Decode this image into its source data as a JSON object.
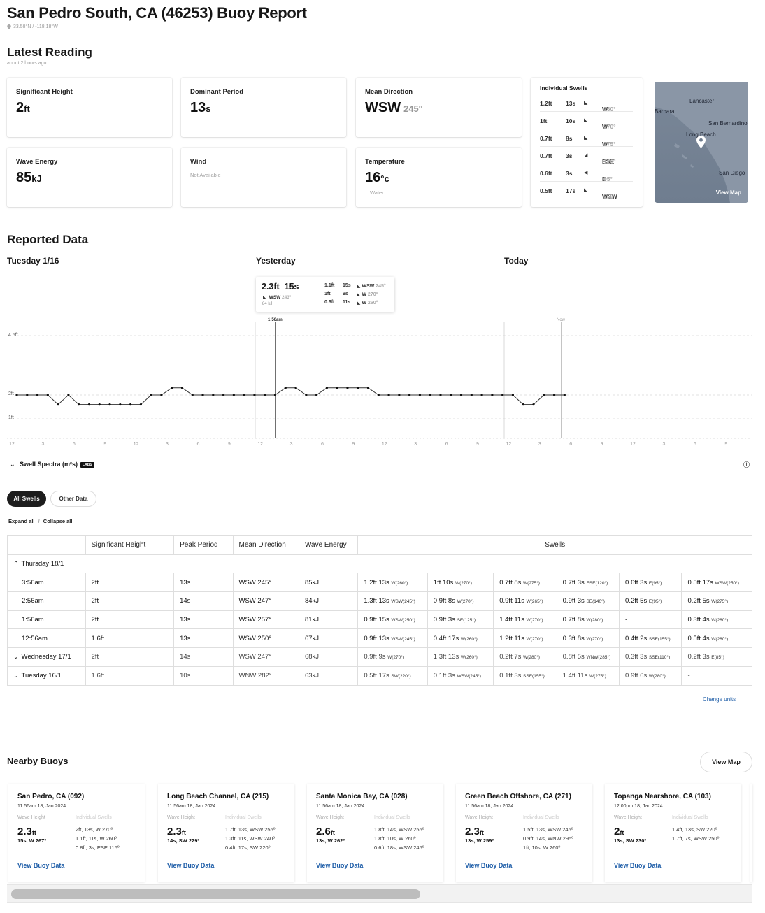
{
  "header": {
    "title": "San Pedro South, CA (46253) Buoy Report",
    "coords": "33.58°N / -118.18°W"
  },
  "latest": {
    "heading": "Latest Reading",
    "ago": "about 2 hours ago",
    "sig_height": {
      "label": "Significant Height",
      "value": "2",
      "unit": "ft"
    },
    "dom_period": {
      "label": "Dominant Period",
      "value": "13",
      "unit": "s"
    },
    "mean_dir": {
      "label": "Mean Direction",
      "value": "WSW",
      "deg": "245°"
    },
    "energy": {
      "label": "Wave Energy",
      "value": "85",
      "unit": "kJ"
    },
    "wind": {
      "label": "Wind",
      "value": "Not Available"
    },
    "temp": {
      "label": "Temperature",
      "value": "16",
      "unit": "°c",
      "note": "Water"
    },
    "swells_title": "Individual Swells",
    "swells": [
      {
        "h": "1.2ft",
        "p": "13s",
        "dir": "W",
        "deg": "260°"
      },
      {
        "h": "1ft",
        "p": "10s",
        "dir": "W",
        "deg": "270°"
      },
      {
        "h": "0.7ft",
        "p": "8s",
        "dir": "W",
        "deg": "275°"
      },
      {
        "h": "0.7ft",
        "p": "3s",
        "dir": "ESE",
        "deg": "120°"
      },
      {
        "h": "0.6ft",
        "p": "3s",
        "dir": "E",
        "deg": "95°"
      },
      {
        "h": "0.5ft",
        "p": "17s",
        "dir": "WSW",
        "deg": "250°"
      }
    ],
    "map": {
      "labels": [
        "Lancaster",
        "Barbara",
        "San Bernardino",
        "Long Beach",
        "San Diego"
      ],
      "view": "View Map"
    }
  },
  "reported": {
    "heading": "Reported Data",
    "days": [
      "Tuesday 1/16",
      "Yesterday",
      "Today"
    ],
    "tooltip": {
      "height": "2.3ft",
      "period": "15s",
      "dir": "WSW",
      "deg": "243°",
      "energy": "84 kJ",
      "rows": [
        {
          "h": "1.1ft",
          "p": "15s",
          "dir": "WSW",
          "deg": "245°"
        },
        {
          "h": "1ft",
          "p": "9s",
          "dir": "W",
          "deg": "270°"
        },
        {
          "h": "0.6ft",
          "p": "11s",
          "dir": "W",
          "deg": "260°"
        }
      ]
    },
    "cursor_label": "1:56am",
    "now_label": "Now",
    "spectra_label": "Swell Spectra (m²s)",
    "labs": "LABS"
  },
  "chart_data": {
    "type": "line",
    "ylabels": [
      "4.5ft",
      "2ft",
      "1ft"
    ],
    "xticks": [
      "12",
      "3",
      "6",
      "9",
      "12",
      "3",
      "6",
      "9",
      "12",
      "3",
      "6",
      "9",
      "12",
      "3",
      "6",
      "9",
      "12",
      "3",
      "6",
      "9",
      "12",
      "3",
      "6",
      "9"
    ],
    "series": [
      {
        "values": [
          2,
          2,
          2,
          2,
          1.6,
          2,
          1.6,
          1.6,
          1.6,
          1.6,
          1.6,
          1.6,
          1.6,
          2,
          2,
          2.3,
          2.3,
          2,
          2,
          2,
          2,
          2,
          2,
          2,
          2,
          2,
          2.3,
          2.3,
          2,
          2,
          2.3,
          2.3,
          2.3,
          2.3,
          2.3,
          2,
          2,
          2,
          2,
          2,
          2,
          2,
          2,
          2,
          2,
          2,
          2,
          2,
          2,
          1.6,
          1.6,
          2,
          2,
          2
        ]
      }
    ]
  },
  "tabs": {
    "all": "All Swells",
    "other": "Other Data"
  },
  "expand": {
    "expand": "Expand all",
    "sep": "/",
    "collapse": "Collapse all"
  },
  "table": {
    "headers": [
      "Significant Height",
      "Peak Period",
      "Mean Direction",
      "Wave Energy",
      "Swells"
    ],
    "group_thursday": "Thursday 18/1",
    "rows": [
      {
        "time": "3:56am",
        "h": "2ft",
        "p": "13s",
        "dir": "WSW 245°",
        "e": "85kJ",
        "sw": [
          [
            "1.2ft 13s",
            "W(260°)"
          ],
          [
            "1ft 10s",
            "W(270°)"
          ],
          [
            "0.7ft 8s",
            "W(275°)"
          ],
          [
            "0.7ft 3s",
            "ESE(120°)"
          ],
          [
            "0.6ft 3s",
            "E(95°)"
          ],
          [
            "0.5ft 17s",
            "WSW(250°)"
          ]
        ]
      },
      {
        "time": "2:56am",
        "h": "2ft",
        "p": "14s",
        "dir": "WSW 247°",
        "e": "84kJ",
        "sw": [
          [
            "1.3ft 13s",
            "WSW(245°)"
          ],
          [
            "0.9ft 8s",
            "W(270°)"
          ],
          [
            "0.9ft 11s",
            "W(265°)"
          ],
          [
            "0.9ft 3s",
            "SE(140°)"
          ],
          [
            "0.2ft 5s",
            "E(95°)"
          ],
          [
            "0.2ft 5s",
            "W(275°)"
          ]
        ]
      },
      {
        "time": "1:56am",
        "h": "2ft",
        "p": "13s",
        "dir": "WSW 257°",
        "e": "81kJ",
        "sw": [
          [
            "0.9ft 15s",
            "WSW(250°)"
          ],
          [
            "0.9ft 3s",
            "SE(125°)"
          ],
          [
            "1.4ft 11s",
            "W(270°)"
          ],
          [
            "0.7ft 8s",
            "W(280°)"
          ],
          [
            "-",
            ""
          ],
          [
            "0.3ft 4s",
            "W(280°)"
          ]
        ]
      },
      {
        "time": "12:56am",
        "h": "1.6ft",
        "p": "13s",
        "dir": "WSW 250°",
        "e": "67kJ",
        "sw": [
          [
            "0.9ft 13s",
            "WSW(245°)"
          ],
          [
            "0.4ft 17s",
            "W(260°)"
          ],
          [
            "1.2ft 11s",
            "W(270°)"
          ],
          [
            "0.3ft 8s",
            "W(270°)"
          ],
          [
            "0.4ft 2s",
            "SSE(155°)"
          ],
          [
            "0.5ft 4s",
            "W(280°)"
          ]
        ]
      }
    ],
    "collapsed": [
      {
        "day": "Wednesday 17/1",
        "h": "2ft",
        "p": "14s",
        "dir": "WSW 247°",
        "e": "68kJ",
        "sw": [
          [
            "0.9ft 9s",
            "W(270°)"
          ],
          [
            "1.3ft 13s",
            "W(260°)"
          ],
          [
            "0.2ft 7s",
            "W(280°)"
          ],
          [
            "0.8ft 5s",
            "WNW(285°)"
          ],
          [
            "0.3ft 3s",
            "SSE(110°)"
          ],
          [
            "0.2ft 3s",
            "E(85°)"
          ]
        ]
      },
      {
        "day": "Tuesday 16/1",
        "h": "1.6ft",
        "p": "10s",
        "dir": "WNW 282°",
        "e": "63kJ",
        "sw": [
          [
            "0.5ft 17s",
            "SW(220°)"
          ],
          [
            "0.1ft 3s",
            "WSW(245°)"
          ],
          [
            "0.1ft 3s",
            "SSE(155°)"
          ],
          [
            "1.4ft 11s",
            "W(275°)"
          ],
          [
            "0.9ft 6s",
            "W(280°)"
          ],
          [
            "-",
            ""
          ]
        ]
      }
    ],
    "change_units": "Change units"
  },
  "nearby": {
    "heading": "Nearby Buoys",
    "view_map": "View Map",
    "wave_height_label": "Wave Height",
    "ind_swells_label": "Individual Swells",
    "view_data": "View Buoy Data",
    "cards": [
      {
        "name": "San Pedro, CA (092)",
        "date": "11:56am 18, Jan 2024",
        "h": "2.3",
        "unit": "ft",
        "ps": "15s, W 267º",
        "sw": [
          "2ft, 13s, W 270º",
          "1.1ft, 11s, W 260º",
          "0.8ft, 3s, ESE 115º"
        ]
      },
      {
        "name": "Long Beach Channel, CA (215)",
        "date": "11:56am 18, Jan 2024",
        "h": "2.3",
        "unit": "ft",
        "ps": "14s, SW 229º",
        "sw": [
          "1.7ft, 13s, WSW 255º",
          "1.3ft, 11s, WSW 240º",
          "0.4ft, 17s, SW 220º"
        ]
      },
      {
        "name": "Santa Monica Bay, CA (028)",
        "date": "11:56am 18, Jan 2024",
        "h": "2.6",
        "unit": "ft",
        "ps": "13s, W 262º",
        "sw": [
          "1.8ft, 14s, WSW 255º",
          "1.8ft, 10s, W 260º",
          "0.6ft, 18s, WSW 245º"
        ]
      },
      {
        "name": "Green Beach Offshore, CA (271)",
        "date": "11:56am 18, Jan 2024",
        "h": "2.3",
        "unit": "ft",
        "ps": "13s, W 259º",
        "sw": [
          "1.5ft, 13s, WSW 245º",
          "0.9ft, 14s, WNW 295º",
          "1ft, 10s, W 260º"
        ]
      },
      {
        "name": "Topanga Nearshore, CA (103)",
        "date": "12:00pm 18, Jan 2024",
        "h": "2",
        "unit": "ft",
        "ps": "13s, SW 230º",
        "sw": [
          "1.4ft, 13s, SW 220º",
          "1.7ft, 7s, WSW 250º"
        ]
      }
    ]
  }
}
